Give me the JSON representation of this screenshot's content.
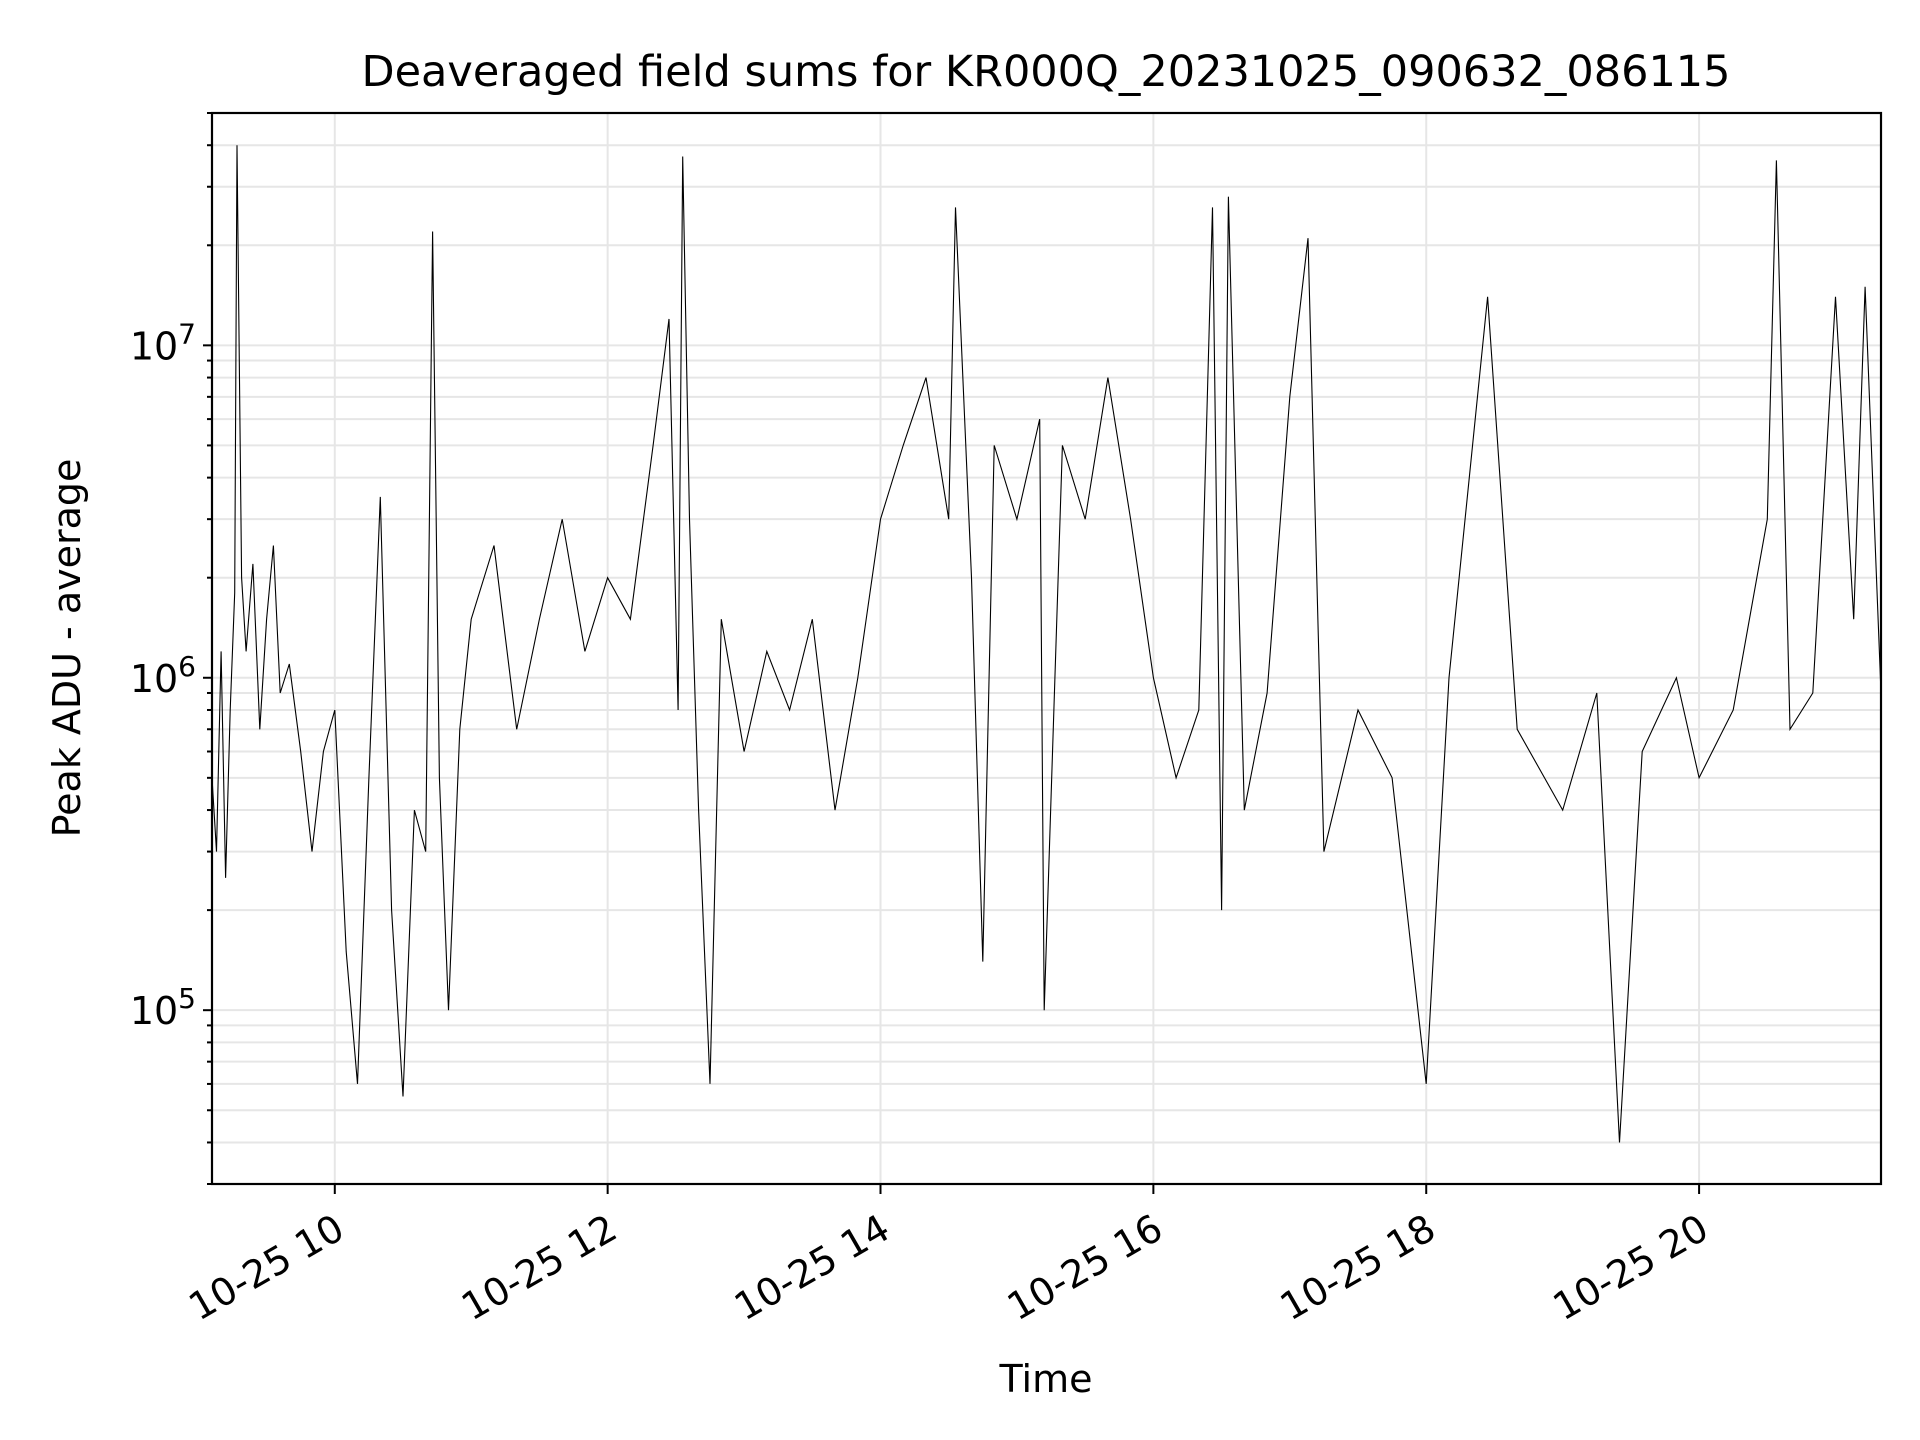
{
  "chart_data": {
    "type": "line",
    "title": "Deaveraged field sums for KR000Q_20231025_090632_086115",
    "xlabel": "Time",
    "ylabel": "Peak ADU - average",
    "x_axis": {
      "kind": "datetime",
      "xlim": [
        "2023-10-25 09:06",
        "2023-10-25 21:20"
      ],
      "ticks": [
        "10-25 10",
        "10-25 12",
        "10-25 14",
        "10-25 16",
        "10-25 18",
        "10-25 20"
      ],
      "tick_rotation_deg": 30
    },
    "y_axis": {
      "scale": "log",
      "ylim": [
        30000,
        50000000
      ],
      "major_ticks": [
        "10^5",
        "10^6",
        "10^7"
      ]
    },
    "grid": true,
    "line_color": "#000000",
    "series": [
      {
        "points": [
          [
            "2023-10-25 09:06",
            500000
          ],
          [
            "2023-10-25 09:08",
            300000
          ],
          [
            "2023-10-25 09:10",
            1200000
          ],
          [
            "2023-10-25 09:12",
            250000
          ],
          [
            "2023-10-25 09:14",
            800000
          ],
          [
            "2023-10-25 09:16",
            1800000
          ],
          [
            "2023-10-25 09:17",
            40000000
          ],
          [
            "2023-10-25 09:19",
            2000000
          ],
          [
            "2023-10-25 09:21",
            1200000
          ],
          [
            "2023-10-25 09:24",
            2200000
          ],
          [
            "2023-10-25 09:27",
            700000
          ],
          [
            "2023-10-25 09:30",
            1500000
          ],
          [
            "2023-10-25 09:33",
            2500000
          ],
          [
            "2023-10-25 09:36",
            900000
          ],
          [
            "2023-10-25 09:40",
            1100000
          ],
          [
            "2023-10-25 09:45",
            600000
          ],
          [
            "2023-10-25 09:50",
            300000
          ],
          [
            "2023-10-25 09:55",
            600000
          ],
          [
            "2023-10-25 10:00",
            800000
          ],
          [
            "2023-10-25 10:05",
            150000
          ],
          [
            "2023-10-25 10:10",
            60000
          ],
          [
            "2023-10-25 10:15",
            500000
          ],
          [
            "2023-10-25 10:20",
            3500000
          ],
          [
            "2023-10-25 10:25",
            200000
          ],
          [
            "2023-10-25 10:30",
            55000
          ],
          [
            "2023-10-25 10:35",
            400000
          ],
          [
            "2023-10-25 10:40",
            300000
          ],
          [
            "2023-10-25 10:43",
            22000000
          ],
          [
            "2023-10-25 10:46",
            500000
          ],
          [
            "2023-10-25 10:50",
            100000
          ],
          [
            "2023-10-25 10:55",
            700000
          ],
          [
            "2023-10-25 11:00",
            1500000
          ],
          [
            "2023-10-25 11:10",
            2500000
          ],
          [
            "2023-10-25 11:20",
            700000
          ],
          [
            "2023-10-25 11:30",
            1500000
          ],
          [
            "2023-10-25 11:40",
            3000000
          ],
          [
            "2023-10-25 11:50",
            1200000
          ],
          [
            "2023-10-25 12:00",
            2000000
          ],
          [
            "2023-10-25 12:10",
            1500000
          ],
          [
            "2023-10-25 12:20",
            5000000
          ],
          [
            "2023-10-25 12:27",
            12000000
          ],
          [
            "2023-10-25 12:31",
            800000
          ],
          [
            "2023-10-25 12:33",
            37000000
          ],
          [
            "2023-10-25 12:36",
            3000000
          ],
          [
            "2023-10-25 12:40",
            400000
          ],
          [
            "2023-10-25 12:45",
            60000
          ],
          [
            "2023-10-25 12:50",
            1500000
          ],
          [
            "2023-10-25 13:00",
            600000
          ],
          [
            "2023-10-25 13:10",
            1200000
          ],
          [
            "2023-10-25 13:20",
            800000
          ],
          [
            "2023-10-25 13:30",
            1500000
          ],
          [
            "2023-10-25 13:40",
            400000
          ],
          [
            "2023-10-25 13:50",
            1000000
          ],
          [
            "2023-10-25 14:00",
            3000000
          ],
          [
            "2023-10-25 14:10",
            5000000
          ],
          [
            "2023-10-25 14:20",
            8000000
          ],
          [
            "2023-10-25 14:30",
            3000000
          ],
          [
            "2023-10-25 14:33",
            26000000
          ],
          [
            "2023-10-25 14:40",
            2000000
          ],
          [
            "2023-10-25 14:45",
            140000
          ],
          [
            "2023-10-25 14:50",
            5000000
          ],
          [
            "2023-10-25 15:00",
            3000000
          ],
          [
            "2023-10-25 15:10",
            6000000
          ],
          [
            "2023-10-25 15:12",
            100000
          ],
          [
            "2023-10-25 15:20",
            5000000
          ],
          [
            "2023-10-25 15:30",
            3000000
          ],
          [
            "2023-10-25 15:40",
            8000000
          ],
          [
            "2023-10-25 15:50",
            3000000
          ],
          [
            "2023-10-25 16:00",
            1000000
          ],
          [
            "2023-10-25 16:10",
            500000
          ],
          [
            "2023-10-25 16:20",
            800000
          ],
          [
            "2023-10-25 16:26",
            26000000
          ],
          [
            "2023-10-25 16:30",
            200000
          ],
          [
            "2023-10-25 16:33",
            28000000
          ],
          [
            "2023-10-25 16:40",
            400000
          ],
          [
            "2023-10-25 16:50",
            900000
          ],
          [
            "2023-10-25 17:00",
            7000000
          ],
          [
            "2023-10-25 17:08",
            21000000
          ],
          [
            "2023-10-25 17:15",
            300000
          ],
          [
            "2023-10-25 17:30",
            800000
          ],
          [
            "2023-10-25 17:45",
            500000
          ],
          [
            "2023-10-25 18:00",
            60000
          ],
          [
            "2023-10-25 18:10",
            1000000
          ],
          [
            "2023-10-25 18:27",
            14000000
          ],
          [
            "2023-10-25 18:40",
            700000
          ],
          [
            "2023-10-25 19:00",
            400000
          ],
          [
            "2023-10-25 19:15",
            900000
          ],
          [
            "2023-10-25 19:25",
            40000
          ],
          [
            "2023-10-25 19:35",
            600000
          ],
          [
            "2023-10-25 19:50",
            1000000
          ],
          [
            "2023-10-25 20:00",
            500000
          ],
          [
            "2023-10-25 20:15",
            800000
          ],
          [
            "2023-10-25 20:30",
            3000000
          ],
          [
            "2023-10-25 20:34",
            36000000
          ],
          [
            "2023-10-25 20:40",
            700000
          ],
          [
            "2023-10-25 20:50",
            900000
          ],
          [
            "2023-10-25 21:00",
            14000000
          ],
          [
            "2023-10-25 21:08",
            1500000
          ],
          [
            "2023-10-25 21:13",
            15000000
          ],
          [
            "2023-10-25 21:20",
            900000
          ]
        ]
      }
    ]
  }
}
